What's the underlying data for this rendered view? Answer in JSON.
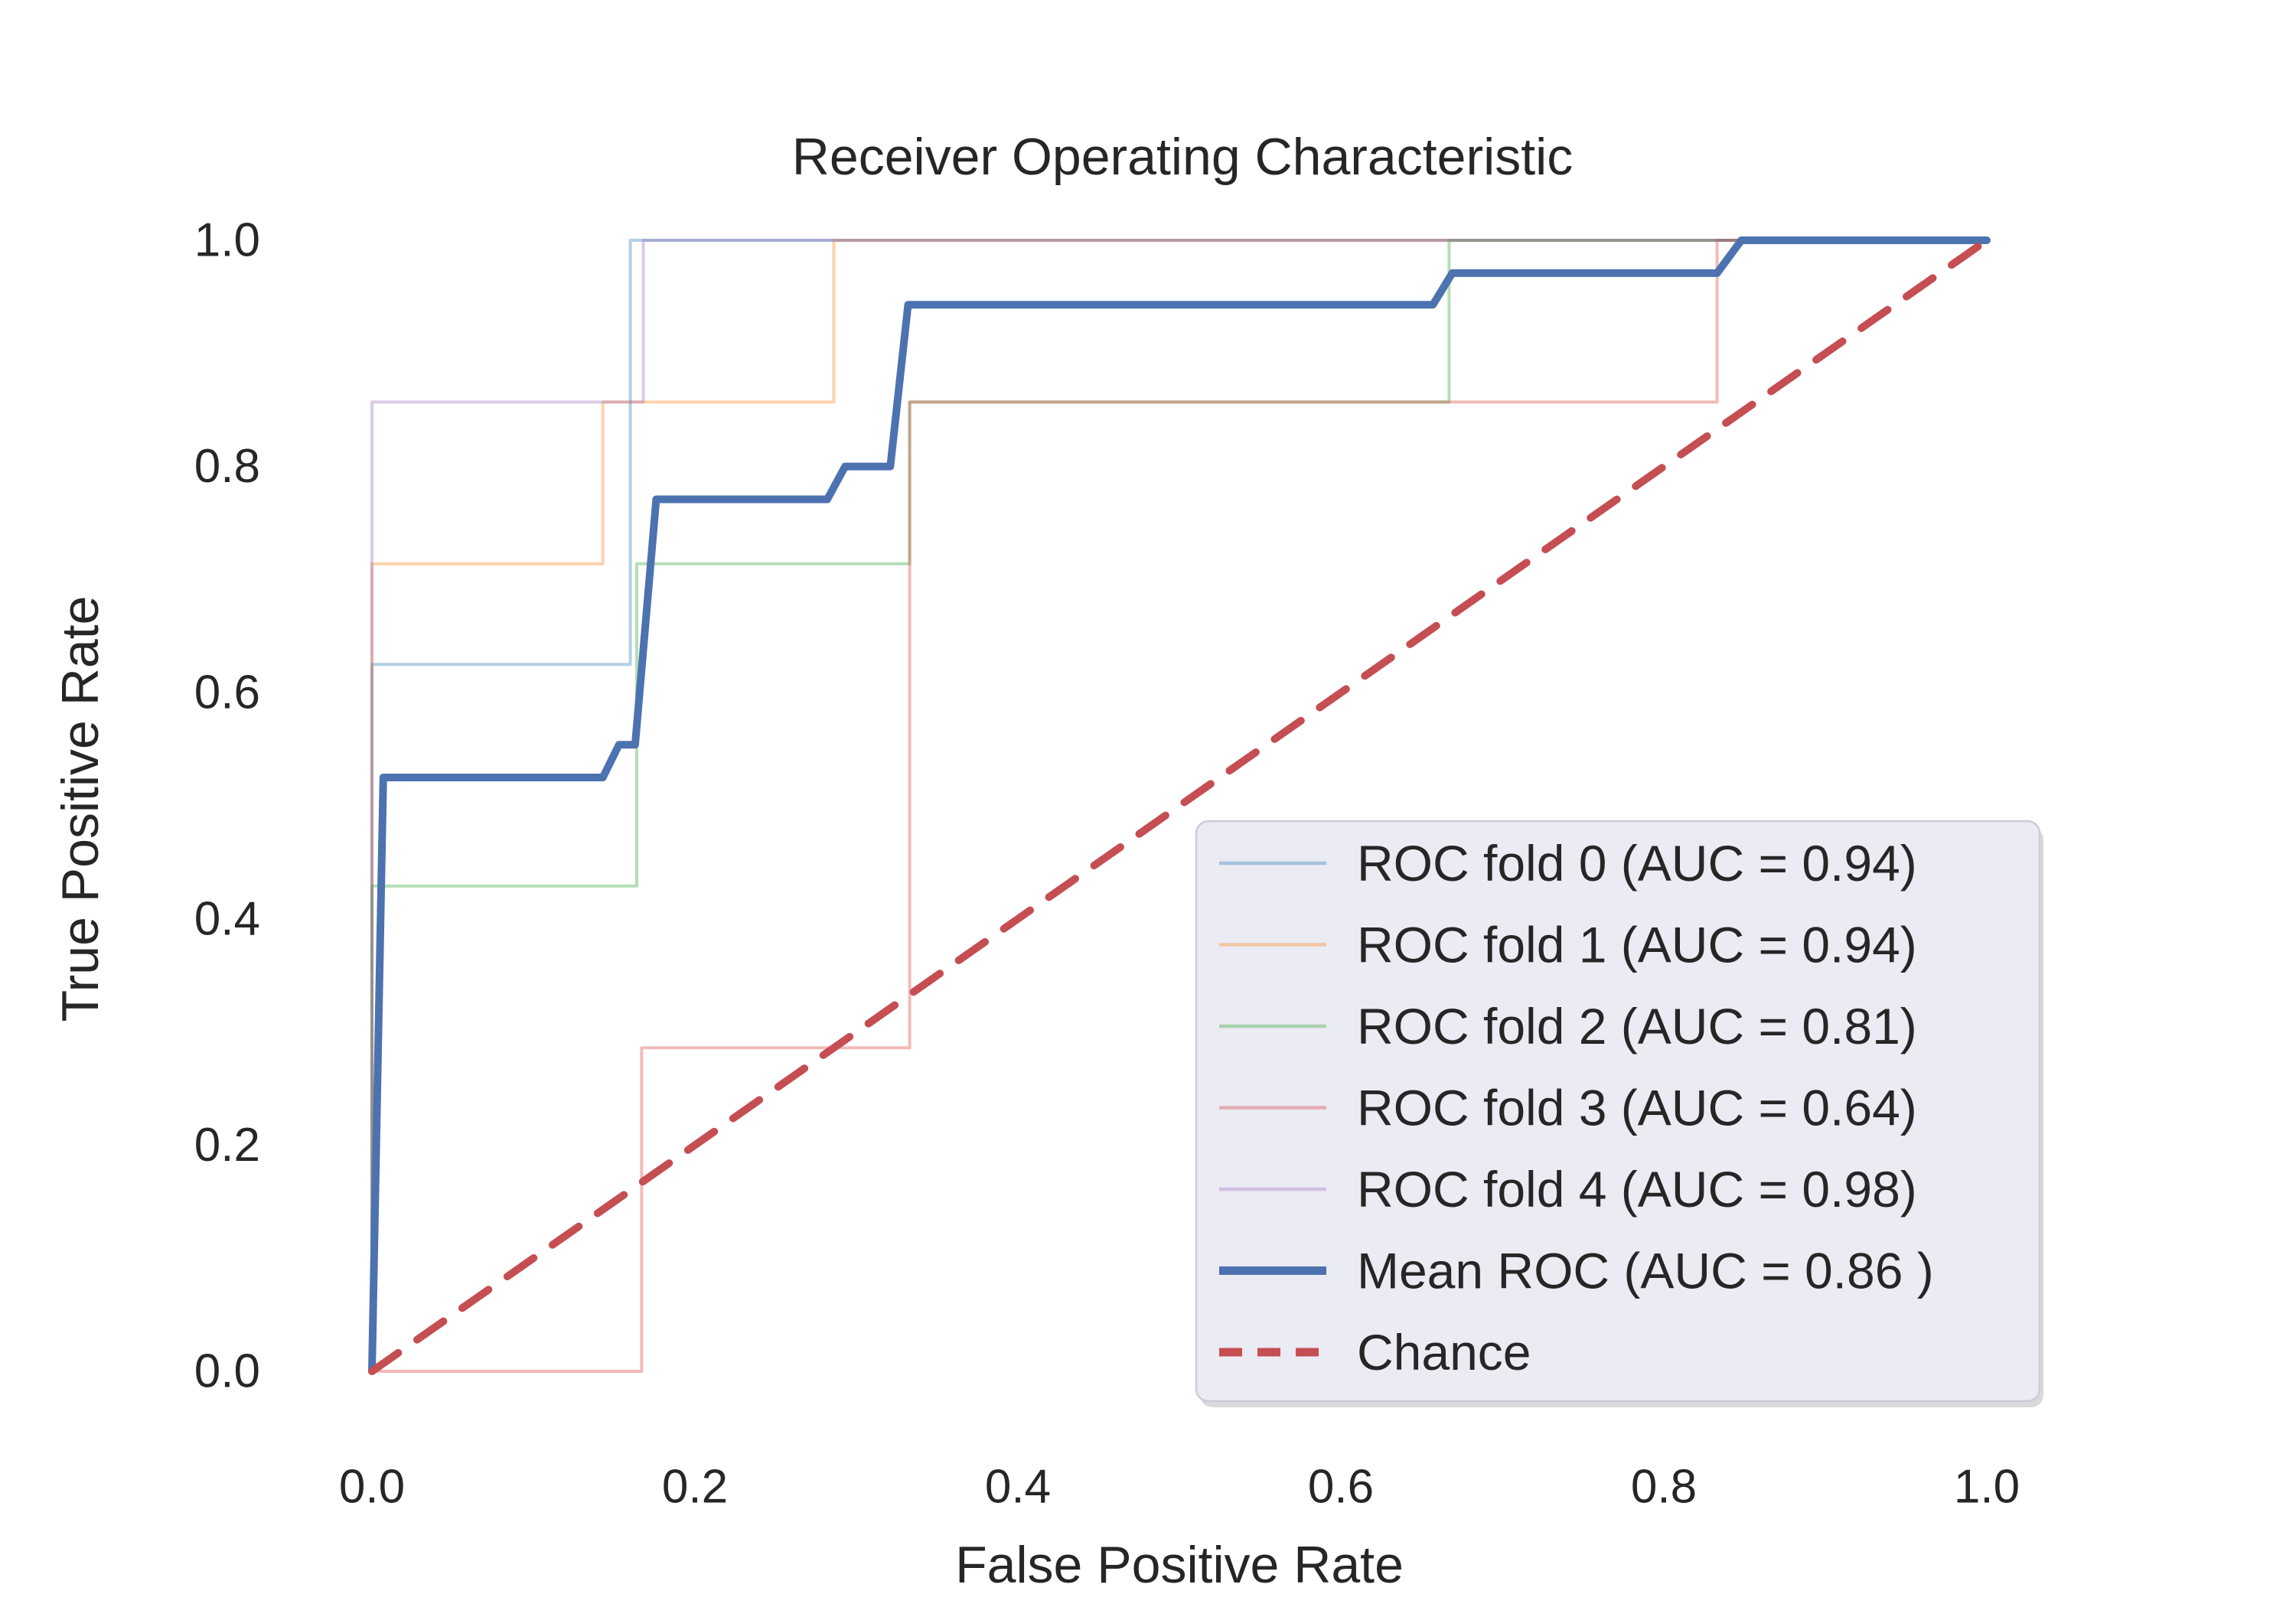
{
  "chart_data": {
    "type": "line",
    "title": "Receiver Operating Characteristic",
    "xlabel": "False Positive Rate",
    "ylabel": "True Positive Rate",
    "xlim": [
      0.0,
      1.0
    ],
    "ylim": [
      0.0,
      1.0
    ],
    "xticks": [
      "0.0",
      "0.2",
      "0.4",
      "0.6",
      "0.8",
      "1.0"
    ],
    "yticks": [
      "0.0",
      "0.2",
      "0.4",
      "0.6",
      "0.8",
      "1.0"
    ],
    "grid": false,
    "legend_position": "lower right",
    "colors": {
      "mean_roc": "#4c72b0",
      "chance": "#c44e52",
      "fold0": "#1f77b4",
      "fold1": "#ff7f0e",
      "fold2": "#2ca02c",
      "fold3": "#d62728",
      "fold4": "#9467bd",
      "legend_bg": "#ebebf3",
      "legend_border": "#ccccd8",
      "text": "#262626"
    },
    "series": [
      {
        "name": "ROC fold 0 (AUC = 0.94)",
        "auc": 0.94,
        "color": "#1f77b4",
        "opacity": 0.35,
        "width": 4,
        "dash": "",
        "points": [
          [
            0,
            0
          ],
          [
            0,
            0.625
          ],
          [
            0.16,
            0.625
          ],
          [
            0.16,
            1
          ],
          [
            1,
            1
          ]
        ]
      },
      {
        "name": "ROC fold 1 (AUC = 0.94)",
        "auc": 0.94,
        "color": "#ff7f0e",
        "opacity": 0.35,
        "width": 4,
        "dash": "",
        "points": [
          [
            0,
            0
          ],
          [
            0,
            0.714
          ],
          [
            0.143,
            0.714
          ],
          [
            0.143,
            0.857
          ],
          [
            0.286,
            0.857
          ],
          [
            0.286,
            1
          ],
          [
            1,
            1
          ]
        ]
      },
      {
        "name": "ROC fold 2 (AUC = 0.81)",
        "auc": 0.81,
        "color": "#2ca02c",
        "opacity": 0.35,
        "width": 4,
        "dash": "",
        "points": [
          [
            0,
            0
          ],
          [
            0,
            0.429
          ],
          [
            0.164,
            0.429
          ],
          [
            0.164,
            0.714
          ],
          [
            0.333,
            0.714
          ],
          [
            0.333,
            0.857
          ],
          [
            0.667,
            0.857
          ],
          [
            0.667,
            1
          ],
          [
            1,
            1
          ]
        ]
      },
      {
        "name": "ROC fold 3 (AUC = 0.64)",
        "auc": 0.64,
        "color": "#d62728",
        "opacity": 0.32,
        "width": 4,
        "dash": "",
        "points": [
          [
            0,
            0
          ],
          [
            0.167,
            0
          ],
          [
            0.167,
            0.286
          ],
          [
            0.333,
            0.286
          ],
          [
            0.333,
            0.857
          ],
          [
            0.833,
            0.857
          ],
          [
            0.833,
            1
          ],
          [
            1,
            1
          ]
        ]
      },
      {
        "name": "ROC fold 4 (AUC = 0.98)",
        "auc": 0.98,
        "color": "#9467bd",
        "opacity": 0.35,
        "width": 4,
        "dash": "",
        "points": [
          [
            0,
            0
          ],
          [
            0,
            0.857
          ],
          [
            0.168,
            0.857
          ],
          [
            0.168,
            1
          ],
          [
            1,
            1
          ]
        ]
      },
      {
        "name": "Mean ROC (AUC = 0.86 )",
        "auc": 0.86,
        "color": "#4c72b0",
        "opacity": 1,
        "width": 10,
        "dash": "",
        "points": [
          [
            0,
            0
          ],
          [
            0.007,
            0.525
          ],
          [
            0.143,
            0.525
          ],
          [
            0.153,
            0.554
          ],
          [
            0.163,
            0.554
          ],
          [
            0.176,
            0.771
          ],
          [
            0.282,
            0.771
          ],
          [
            0.293,
            0.8
          ],
          [
            0.321,
            0.8
          ],
          [
            0.332,
            0.943
          ],
          [
            0.657,
            0.943
          ],
          [
            0.669,
            0.971
          ],
          [
            0.833,
            0.971
          ],
          [
            0.848,
            1.0
          ],
          [
            1,
            1
          ]
        ]
      },
      {
        "name": "Chance",
        "color": "#c44e52",
        "opacity": 1,
        "width": 10,
        "dash": "42 30",
        "points": [
          [
            0,
            0
          ],
          [
            1,
            1
          ]
        ]
      }
    ]
  }
}
